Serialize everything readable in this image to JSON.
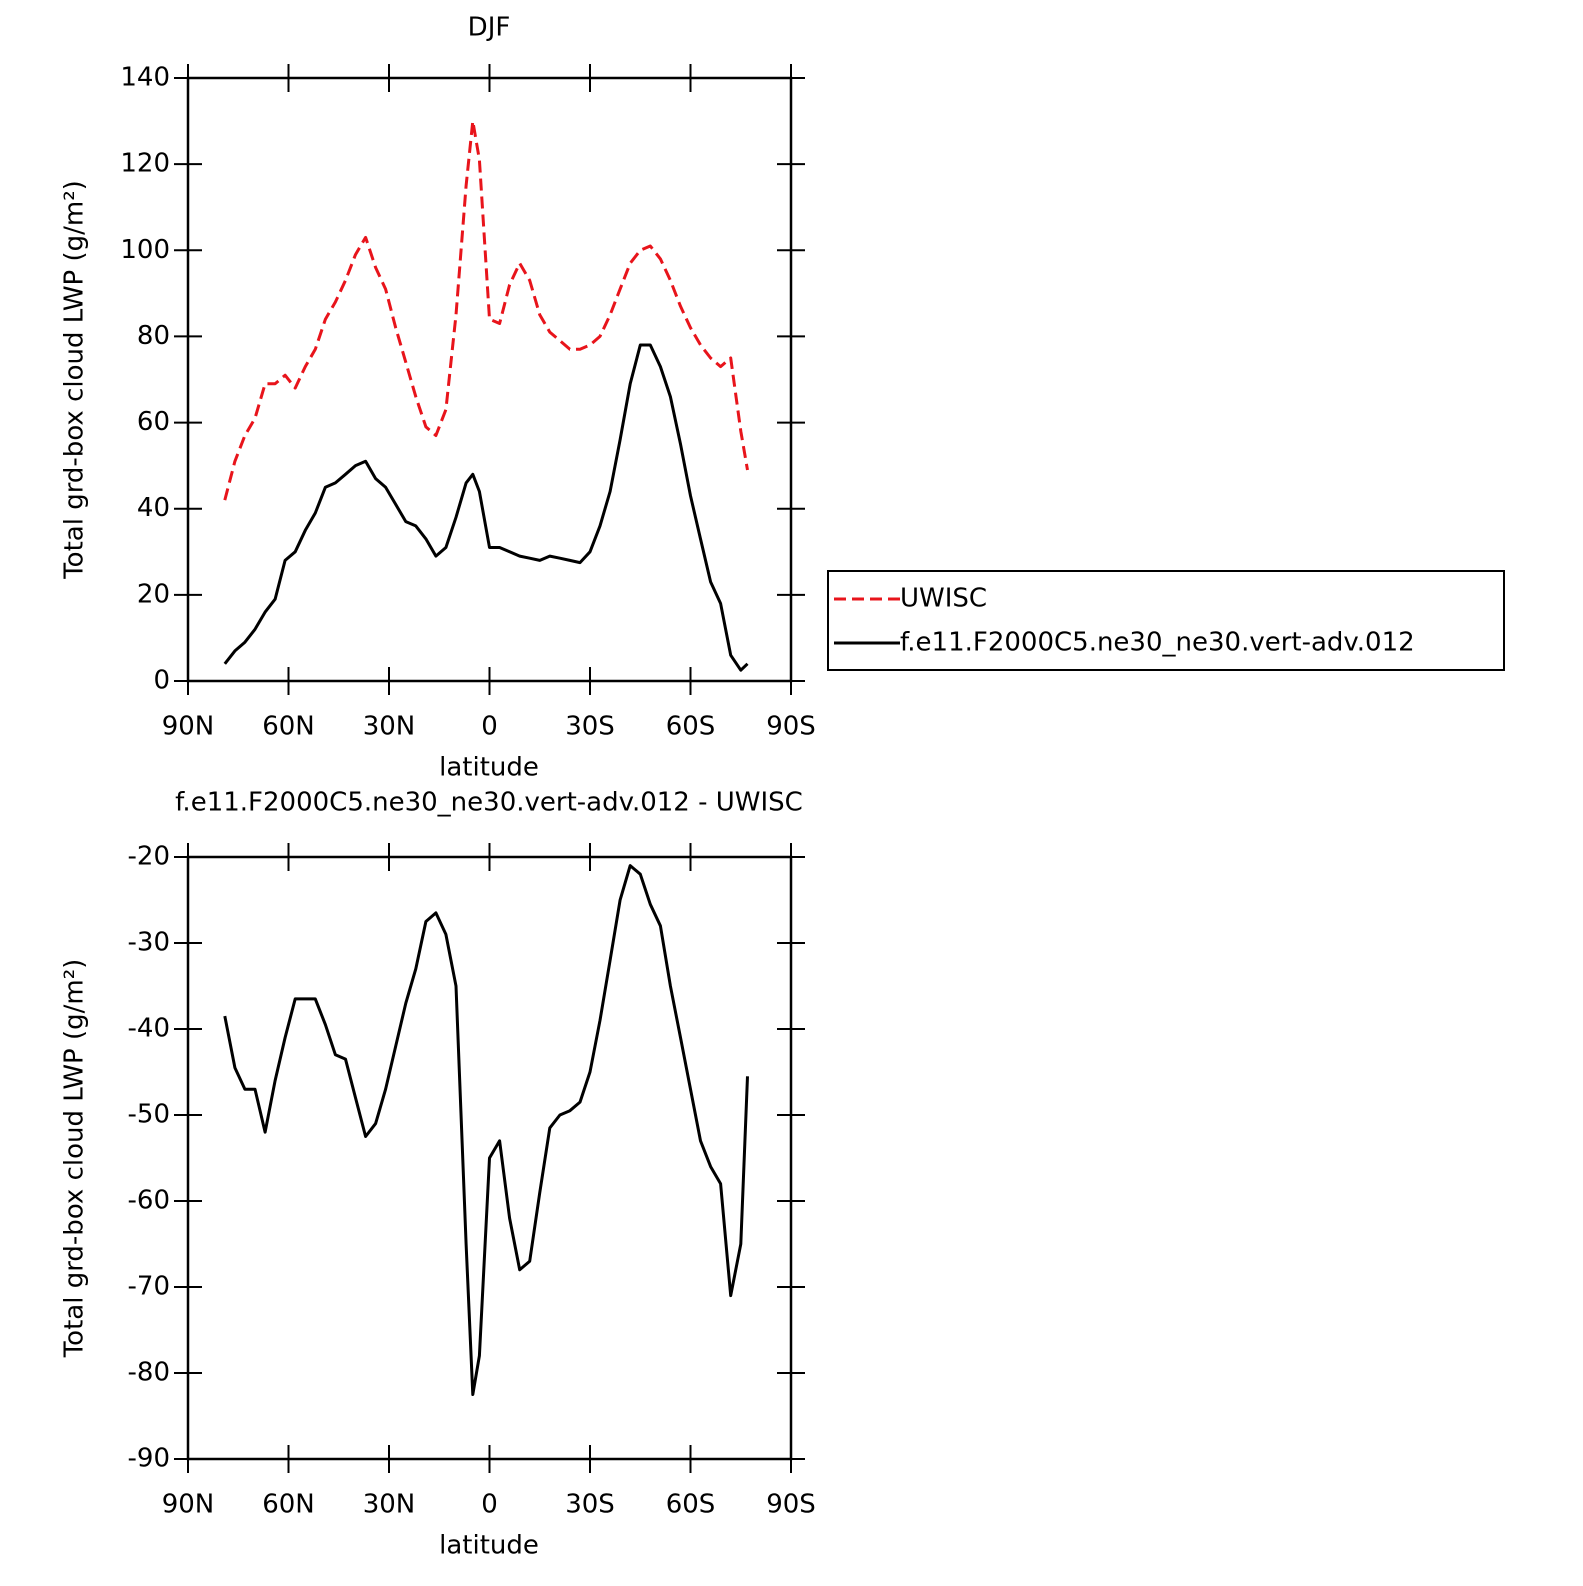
{
  "chart_data": [
    {
      "type": "line",
      "title": "DJF",
      "xlabel": "latitude",
      "ylabel": "Total grd-box cloud LWP (g/m²)",
      "x": [
        79,
        76,
        73,
        70,
        67,
        64,
        61,
        58,
        55,
        52,
        49,
        46,
        43,
        40,
        37,
        34,
        31,
        28,
        25,
        22,
        19,
        16,
        13,
        10,
        7,
        5,
        3,
        0,
        -3,
        -6,
        -9,
        -12,
        -15,
        -18,
        -21,
        -24,
        -27,
        -30,
        -33,
        -36,
        -39,
        -42,
        -45,
        -48,
        -51,
        -54,
        -57,
        -60,
        -63,
        -66,
        -69,
        -72,
        -75,
        -77
      ],
      "series": [
        {
          "name": "UWISC",
          "color": "#e8141b",
          "line_style": "dashed",
          "values": [
            42,
            51,
            57,
            61,
            69,
            69,
            71,
            68,
            73,
            77,
            84,
            88,
            93,
            99,
            103,
            96,
            91,
            82,
            74,
            66,
            59,
            57,
            63,
            85,
            115,
            130,
            121,
            84,
            83,
            92,
            97,
            93,
            85,
            81,
            79,
            77,
            77,
            78,
            80,
            85,
            91,
            97,
            100,
            101,
            98,
            93,
            87,
            82,
            78,
            75,
            73,
            75,
            58,
            49
          ]
        },
        {
          "name": "f.e11.F2000C5.ne30_ne30.vert-adv.012",
          "color": "#000000",
          "line_style": "solid",
          "values": [
            4,
            7,
            9,
            12,
            16,
            19,
            28,
            30,
            35,
            39,
            45,
            46,
            48,
            50,
            51,
            47,
            45,
            41,
            37,
            36,
            33,
            29,
            31,
            38,
            46,
            48,
            44,
            31,
            31,
            30,
            29,
            28.5,
            28,
            29,
            28.5,
            28,
            27.5,
            30,
            36,
            44,
            56,
            69,
            78,
            78,
            73,
            66,
            55,
            43,
            33,
            23,
            18,
            6,
            2.5,
            4
          ]
        }
      ],
      "xlim": [
        90,
        -90
      ],
      "xticks": [
        {
          "value": 90,
          "label": "90N"
        },
        {
          "value": 60,
          "label": "60N"
        },
        {
          "value": 30,
          "label": "30N"
        },
        0,
        {
          "value": -30,
          "label": "30S"
        },
        {
          "value": -60,
          "label": "60S"
        },
        {
          "value": -90,
          "label": "90S"
        }
      ],
      "ylim": [
        0,
        140
      ],
      "yticks": [
        0,
        20,
        40,
        60,
        80,
        100,
        120,
        140
      ],
      "legend": "right"
    },
    {
      "type": "line",
      "title": "f.e11.F2000C5.ne30_ne30.vert-adv.012 - UWISC",
      "xlabel": "latitude",
      "ylabel": "Total grd-box cloud LWP (g/m²)",
      "x": [
        79,
        76,
        73,
        70,
        67,
        64,
        61,
        58,
        55,
        52,
        49,
        46,
        43,
        40,
        37,
        34,
        31,
        28,
        25,
        22,
        19,
        16,
        13,
        10,
        7,
        5,
        3,
        0,
        -3,
        -6,
        -9,
        -12,
        -15,
        -18,
        -21,
        -24,
        -27,
        -30,
        -33,
        -36,
        -39,
        -42,
        -45,
        -48,
        -51,
        -54,
        -57,
        -60,
        -63,
        -66,
        -69,
        -72,
        -75,
        -77
      ],
      "series": [
        {
          "color": "#000000",
          "line_style": "solid",
          "values": [
            -38.5,
            -44.5,
            -47,
            -47,
            -52,
            -46,
            -41,
            -36.5,
            -36.5,
            -36.5,
            -39.5,
            -43,
            -43.5,
            -48,
            -52.5,
            -51,
            -47,
            -42,
            -37,
            -33,
            -27.5,
            -26.5,
            -29,
            -35,
            -65,
            -82.5,
            -78,
            -55,
            -53,
            -62,
            -68,
            -67,
            -59,
            -51.5,
            -50,
            -49.5,
            -48.5,
            -45,
            -39,
            -32,
            -25,
            -21,
            -22,
            -25.5,
            -28,
            -35,
            -41,
            -47,
            -53,
            -56,
            -58,
            -71,
            -65,
            -45.5
          ]
        }
      ],
      "xlim": [
        90,
        -90
      ],
      "xticks": [
        {
          "value": 90,
          "label": "90N"
        },
        {
          "value": 60,
          "label": "60N"
        },
        {
          "value": 30,
          "label": "30N"
        },
        0,
        {
          "value": -30,
          "label": "30S"
        },
        {
          "value": -60,
          "label": "60S"
        },
        {
          "value": -90,
          "label": "90S"
        }
      ],
      "ylim": [
        -90,
        -20
      ],
      "yticks": [
        -90,
        -80,
        -70,
        -60,
        -50,
        -40,
        -30,
        -20
      ]
    }
  ]
}
